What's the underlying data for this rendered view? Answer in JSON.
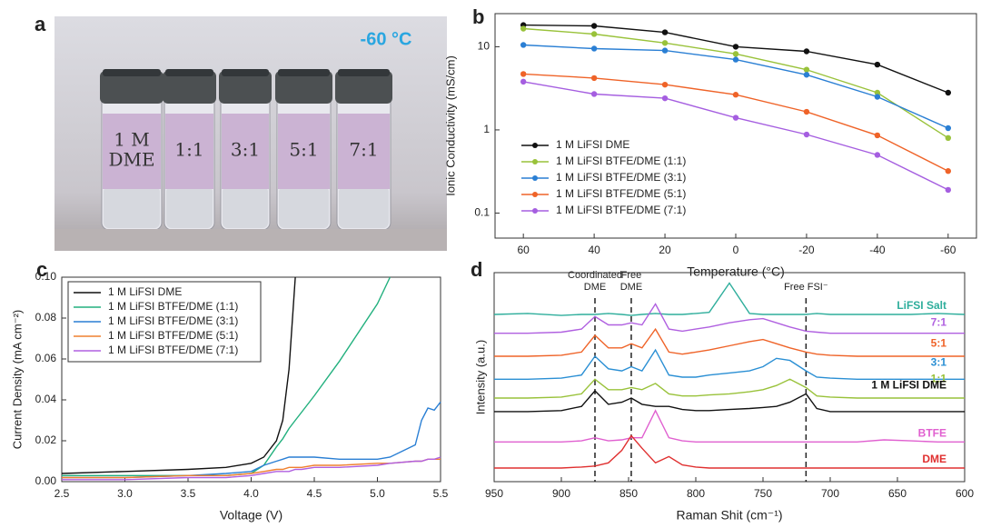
{
  "photo": {
    "panel": "a",
    "temperature": "-60 °C",
    "vials": [
      [
        "1 M",
        "DME"
      ],
      [
        "1:1"
      ],
      [
        "3:1"
      ],
      [
        "5:1"
      ],
      [
        "7:1"
      ]
    ]
  },
  "chart_data": [
    {
      "type": "line",
      "panel": "b",
      "xlabel": "Temperature (°C)",
      "ylabel": "Ionic Conductivity (mS/cm)",
      "x": [
        60,
        40,
        20,
        0,
        -20,
        -40,
        -60
      ],
      "xlim": [
        68,
        -68
      ],
      "xticks": [
        60,
        40,
        20,
        0,
        -20,
        -40,
        -60
      ],
      "ylim": [
        0.05,
        25
      ],
      "yticks": [
        0.1,
        1,
        10
      ],
      "log_y": true,
      "markers": true,
      "legend": "lower left",
      "series": [
        {
          "name": "1 M LiFSI DME",
          "color": "#111111",
          "values": [
            18.2,
            17.8,
            14.9,
            10,
            8.8,
            6.1,
            2.8
          ]
        },
        {
          "name": "1 M LiFSI BTFE/DME (1:1)",
          "color": "#99c23a",
          "values": [
            16.5,
            14.2,
            11.1,
            8.2,
            5.3,
            2.8,
            0.8
          ]
        },
        {
          "name": "1 M LiFSI BTFE/DME (3:1)",
          "color": "#2a7fd4",
          "values": [
            10.5,
            9.5,
            9,
            7.0,
            4.6,
            2.5,
            1.05
          ]
        },
        {
          "name": "1 M LiFSI BTFE/DME (5:1)",
          "color": "#ef6328",
          "values": [
            4.7,
            4.2,
            3.5,
            2.65,
            1.65,
            0.86,
            0.32
          ]
        },
        {
          "name": "1 M LiFSI BTFE/DME (7:1)",
          "color": "#a55ee0",
          "values": [
            3.8,
            2.7,
            2.4,
            1.4,
            0.88,
            0.5,
            0.19
          ]
        }
      ]
    },
    {
      "type": "line",
      "panel": "c",
      "xlabel": "Voltage (V)",
      "ylabel": "Current Density (mA cm⁻²)",
      "x": [
        2.5,
        3.0,
        3.5,
        3.8,
        4.0,
        4.1,
        4.2,
        4.25,
        4.3,
        4.35,
        4.4,
        4.5,
        4.7,
        5.0,
        5.1,
        5.3,
        5.35,
        5.4,
        5.45,
        5.5
      ],
      "xlim": [
        2.5,
        5.5
      ],
      "xticks": [
        {
          "value": 2.5,
          "label": "2.5"
        },
        {
          "value": 3,
          "label": "3.0"
        },
        {
          "value": 3.5,
          "label": "3.5"
        },
        {
          "value": 4,
          "label": "4.0"
        },
        {
          "value": 4.5,
          "label": "4.5"
        },
        {
          "value": 5,
          "label": "5.0"
        },
        {
          "value": 5.5,
          "label": "5.5"
        }
      ],
      "ylim": [
        0,
        0.1
      ],
      "yticks": [
        {
          "value": 0,
          "label": "0.00"
        },
        {
          "value": 0.02,
          "label": "0.02"
        },
        {
          "value": 0.04,
          "label": "0.04"
        },
        {
          "value": 0.06,
          "label": "0.06"
        },
        {
          "value": 0.08,
          "label": "0.08"
        },
        {
          "value": 0.1,
          "label": "0.10"
        }
      ],
      "legend": "upper left",
      "series": [
        {
          "name": "1 M LiFSI DME",
          "color": "#111111",
          "values": [
            0.004,
            0.005,
            0.006,
            0.007,
            0.009,
            0.012,
            0.02,
            0.03,
            0.055,
            0.1,
            null,
            null,
            null,
            null,
            null,
            null,
            null,
            null,
            null,
            null
          ]
        },
        {
          "name": "1 M LiFSI BTFE/DME (1:1)",
          "color": "#22b07e",
          "values": [
            0.003,
            0.003,
            0.003,
            0.003,
            0.004,
            0.008,
            0.017,
            0.021,
            0.026,
            0.03,
            0.034,
            0.042,
            0.059,
            0.087,
            0.1,
            null,
            null,
            null,
            null,
            null
          ]
        },
        {
          "name": "1 M LiFSI BTFE/DME (3:1)",
          "color": "#2a7fd4",
          "values": [
            0.002,
            0.002,
            0.003,
            0.004,
            0.005,
            0.008,
            0.01,
            0.011,
            0.012,
            0.012,
            0.012,
            0.012,
            0.011,
            0.011,
            0.012,
            0.018,
            0.03,
            0.036,
            0.035,
            0.039
          ]
        },
        {
          "name": "1 M LiFSI BTFE/DME (5:1)",
          "color": "#ef8030",
          "values": [
            0.002,
            0.002,
            0.003,
            0.003,
            0.004,
            0.005,
            0.006,
            0.006,
            0.007,
            0.007,
            0.007,
            0.008,
            0.008,
            0.009,
            0.009,
            0.01,
            0.01,
            0.011,
            0.011,
            0.011
          ]
        },
        {
          "name": "1 M LiFSI BTFE/DME (7:1)",
          "color": "#b060e0",
          "values": [
            0.001,
            0.001,
            0.002,
            0.002,
            0.003,
            0.004,
            0.005,
            0.005,
            0.005,
            0.006,
            0.006,
            0.007,
            0.007,
            0.008,
            0.009,
            0.01,
            0.01,
            0.011,
            0.011,
            0.012
          ]
        }
      ]
    },
    {
      "type": "line",
      "panel": "d",
      "xlabel": "Raman Shit (cm⁻¹)",
      "ylabel": "Intensity (a.u.)",
      "x": [
        950,
        925,
        900,
        885,
        875,
        865,
        855,
        848,
        840,
        830,
        820,
        810,
        800,
        790,
        775,
        760,
        750,
        740,
        730,
        718,
        710,
        700,
        680,
        660,
        640,
        620,
        600
      ],
      "xlim": [
        950,
        600
      ],
      "xticks": [
        950,
        900,
        850,
        800,
        750,
        700,
        650,
        600
      ],
      "ylim": [
        0,
        10
      ],
      "annotations": [
        {
          "lines": [
            "Coordinated",
            "DME"
          ],
          "x": 875
        },
        {
          "lines": [
            "Free",
            "DME"
          ],
          "x": 848
        },
        {
          "lines": [
            "Free FSI⁻"
          ],
          "x": 718
        }
      ],
      "series": [
        {
          "name": "LiFSI Salt",
          "color": "#2fae9c",
          "values": [
            8.0,
            8.05,
            7.95,
            8.0,
            8.0,
            8.05,
            8.0,
            7.95,
            8.0,
            8.05,
            8.0,
            8.0,
            8.05,
            8.1,
            9.5,
            8.05,
            8.0,
            8.0,
            8.0,
            8.0,
            8.05,
            8.0,
            8.0,
            8.0,
            8.0,
            8.05,
            8.0
          ]
        },
        {
          "name": "7:1",
          "color": "#b060e0",
          "values": [
            7.1,
            7.1,
            7.15,
            7.3,
            7.9,
            7.5,
            7.5,
            7.6,
            7.5,
            8.5,
            7.3,
            7.2,
            7.3,
            7.4,
            7.6,
            7.75,
            7.8,
            7.6,
            7.4,
            7.2,
            7.15,
            7.1,
            7.1,
            7.1,
            7.1,
            7.1,
            7.1
          ]
        },
        {
          "name": "5:1",
          "color": "#ef6328",
          "values": [
            6.0,
            6.0,
            6.05,
            6.2,
            7.0,
            6.4,
            6.4,
            6.6,
            6.4,
            7.3,
            6.2,
            6.1,
            6.2,
            6.3,
            6.5,
            6.7,
            6.8,
            6.6,
            6.4,
            6.2,
            6.1,
            6.05,
            6.0,
            6.0,
            6.0,
            6.0,
            6.0
          ]
        },
        {
          "name": "3:1",
          "color": "#2a8fd4",
          "values": [
            4.9,
            4.9,
            4.95,
            5.1,
            6.0,
            5.4,
            5.3,
            5.5,
            5.3,
            6.3,
            5.1,
            5.0,
            5.0,
            5.1,
            5.2,
            5.3,
            5.5,
            5.9,
            5.8,
            5.3,
            5.0,
            4.95,
            4.9,
            4.9,
            4.9,
            4.9,
            4.9
          ]
        },
        {
          "name": "1:1",
          "color": "#99c23a",
          "values": [
            4.0,
            4.0,
            4.05,
            4.2,
            4.9,
            4.4,
            4.4,
            4.5,
            4.4,
            4.7,
            4.2,
            4.1,
            4.1,
            4.15,
            4.2,
            4.3,
            4.4,
            4.6,
            4.9,
            4.5,
            4.1,
            4.05,
            4.0,
            4.0,
            4.0,
            4.0,
            4.0
          ]
        },
        {
          "name": "1 M LiFSI DME",
          "color": "#111111",
          "values": [
            3.35,
            3.35,
            3.4,
            3.6,
            4.35,
            3.7,
            3.8,
            4.0,
            3.7,
            3.6,
            3.6,
            3.45,
            3.4,
            3.4,
            3.45,
            3.5,
            3.55,
            3.6,
            3.8,
            4.2,
            3.5,
            3.35,
            3.35,
            3.35,
            3.35,
            3.35,
            3.35
          ]
        },
        {
          "name": "BTFE",
          "color": "#e060d0",
          "values": [
            1.9,
            1.9,
            1.9,
            1.95,
            2.1,
            1.95,
            2.0,
            2.1,
            2.1,
            3.4,
            2.1,
            1.95,
            1.9,
            1.9,
            1.9,
            1.9,
            1.9,
            1.9,
            1.9,
            1.9,
            1.9,
            1.9,
            1.9,
            2.0,
            1.95,
            1.9,
            1.9
          ]
        },
        {
          "name": "DME",
          "color": "#e03030",
          "values": [
            0.65,
            0.65,
            0.65,
            0.7,
            0.75,
            0.9,
            1.5,
            2.2,
            1.6,
            0.9,
            1.2,
            0.8,
            0.7,
            0.65,
            0.65,
            0.65,
            0.65,
            0.65,
            0.65,
            0.65,
            0.65,
            0.65,
            0.65,
            0.65,
            0.65,
            0.65,
            0.65
          ]
        }
      ]
    }
  ]
}
